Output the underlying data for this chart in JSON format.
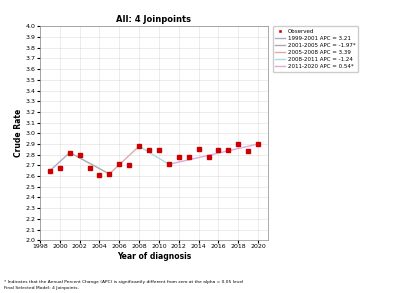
{
  "title": "All: 4 Joinpoints",
  "xlabel": "Year of diagnosis",
  "ylabel": "Crude Rate",
  "footnote1": "* Indicates that the Annual Percent Change (APC) is significantly different from zero at the alpha = 0.05 level",
  "footnote2": "Final Selected Model: 4 Joinpoints.",
  "observed_years": [
    1999,
    2000,
    2001,
    2002,
    2003,
    2004,
    2005,
    2006,
    2007,
    2008,
    2009,
    2010,
    2011,
    2012,
    2013,
    2014,
    2015,
    2016,
    2017,
    2018,
    2019,
    2020
  ],
  "observed_values": [
    2.65,
    2.68,
    2.82,
    2.8,
    2.68,
    2.61,
    2.62,
    2.71,
    2.7,
    2.88,
    2.84,
    2.84,
    2.71,
    2.78,
    2.78,
    2.85,
    2.78,
    2.84,
    2.84,
    2.9,
    2.83,
    2.9
  ],
  "segments": [
    {
      "years": [
        1999,
        2001
      ],
      "values": [
        2.65,
        2.82
      ],
      "color": "#aaaacc",
      "label": "1999-2001 APC = 3.21"
    },
    {
      "years": [
        2001,
        2005
      ],
      "values": [
        2.82,
        2.62
      ],
      "color": "#aaaaaa",
      "label": "2001-2005 APC = -1.97*"
    },
    {
      "years": [
        2005,
        2008
      ],
      "values": [
        2.62,
        2.88
      ],
      "color": "#ddaaaa",
      "label": "2005-2008 APC = 3.39"
    },
    {
      "years": [
        2008,
        2011
      ],
      "values": [
        2.88,
        2.71
      ],
      "color": "#aadddd",
      "label": "2008-2011 APC = -1.24"
    },
    {
      "years": [
        2011,
        2020
      ],
      "values": [
        2.71,
        2.9
      ],
      "color": "#ddaadd",
      "label": "2011-2020 APC = 0.54*"
    }
  ],
  "xlim": [
    1998,
    2021
  ],
  "ylim": [
    2.0,
    4.0
  ],
  "yticks": [
    2.0,
    2.1,
    2.2,
    2.3,
    2.4,
    2.5,
    2.6,
    2.7,
    2.8,
    2.9,
    3.0,
    3.1,
    3.2,
    3.3,
    3.4,
    3.5,
    3.6,
    3.7,
    3.8,
    3.9,
    4.0
  ],
  "xticks": [
    1998,
    2000,
    2002,
    2004,
    2006,
    2008,
    2010,
    2012,
    2014,
    2016,
    2018,
    2020
  ],
  "observed_color": "#cc0000",
  "observed_marker": "s",
  "observed_markersize": 3.5
}
